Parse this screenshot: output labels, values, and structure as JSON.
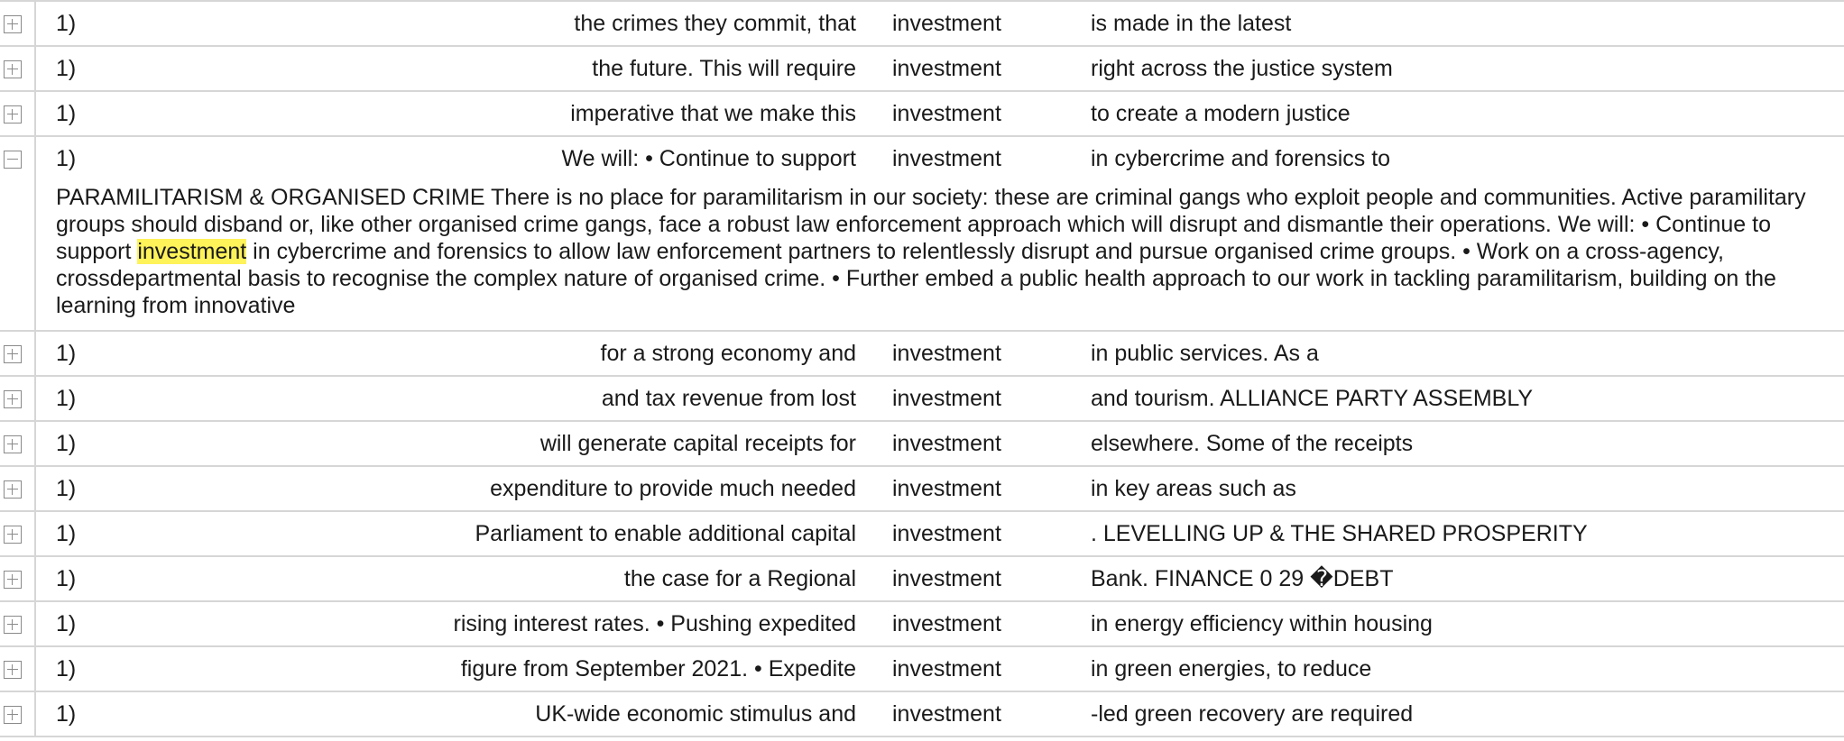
{
  "keyword": "investment",
  "rows": [
    {
      "num": "1)",
      "left": "the crimes they commit, that",
      "kw": "investment",
      "right": "is made in the latest",
      "expanded": false
    },
    {
      "num": "1)",
      "left": "the future. This will require",
      "kw": "investment",
      "right": "right across the justice system",
      "expanded": false
    },
    {
      "num": "1)",
      "left": "imperative that we make this",
      "kw": "investment",
      "right": "to create a modern justice",
      "expanded": false
    },
    {
      "num": "1)",
      "left": "We will: • Continue to support",
      "kw": "investment",
      "right": "in cybercrime and forensics to",
      "expanded": true,
      "context": {
        "before": "PARAMILITARISM & ORGANISED CRIME There is no place for paramilitarism in our society: these are criminal gangs who exploit people and communities. Active paramilitary groups should disband or, like other organised crime gangs, face a robust law enforcement approach which will disrupt and dismantle their operations. We will: • Continue to support ",
        "keyword": "investment",
        "after": " in cybercrime and forensics to allow law enforcement partners to relentlessly disrupt and pursue organised crime groups. • Work on a cross-agency, crossdepartmental basis to recognise the complex nature of organised crime. • Further embed a public health approach to our work in tackling paramilitarism, building on the learning from innovative"
      }
    },
    {
      "num": "1)",
      "left": "for a strong economy and",
      "kw": "investment",
      "right": "in public services. As a",
      "expanded": false
    },
    {
      "num": "1)",
      "left": "and tax revenue from lost",
      "kw": "investment",
      "right": "and tourism. ALLIANCE PARTY ASSEMBLY",
      "expanded": false
    },
    {
      "num": "1)",
      "left": "will generate capital receipts for",
      "kw": "investment",
      "right": "elsewhere. Some of the receipts",
      "expanded": false
    },
    {
      "num": "1)",
      "left": "expenditure to provide much needed",
      "kw": "investment",
      "right": "in key areas such as",
      "expanded": false
    },
    {
      "num": "1)",
      "left": "Parliament to enable additional capital",
      "kw": "investment",
      "right": ". LEVELLING UP & THE SHARED PROSPERITY",
      "expanded": false
    },
    {
      "num": "1)",
      "left": "the case for a Regional",
      "kw": "investment",
      "right": "Bank. FINANCE 0 29 �DEBT",
      "expanded": false
    },
    {
      "num": "1)",
      "left": "rising interest rates. • Pushing expedited",
      "kw": "investment",
      "right": "in energy efficiency within housing",
      "expanded": false
    },
    {
      "num": "1)",
      "left": "figure from September 2021. • Expedite",
      "kw": "investment",
      "right": "in green energies, to reduce",
      "expanded": false
    },
    {
      "num": "1)",
      "left": "UK-wide economic stimulus and",
      "kw": "investment",
      "right": "-led green recovery are required",
      "expanded": false
    }
  ],
  "colors": {
    "highlight": "#fff35a",
    "border": "#d6d6d6",
    "icon": "#8a8a8a"
  },
  "icons": {
    "collapsed": "expand-plus-icon",
    "expanded": "collapse-minus-icon"
  }
}
